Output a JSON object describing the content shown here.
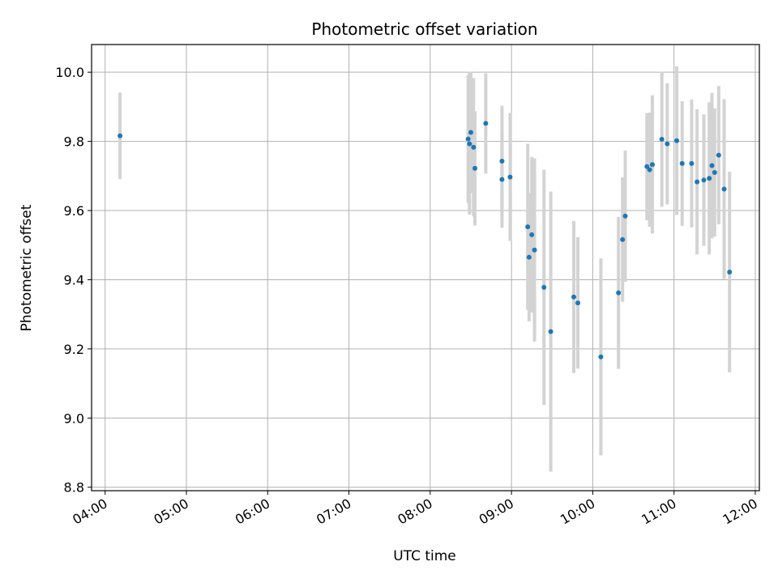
{
  "chart_data": {
    "type": "scatter",
    "title": "Photometric offset variation",
    "xlabel": "UTC time",
    "ylabel": "Photometric offset",
    "xlim": [
      "03:50",
      "12:03"
    ],
    "ylim": [
      8.79,
      10.08
    ],
    "xticks": [
      "04:00",
      "05:00",
      "06:00",
      "07:00",
      "08:00",
      "09:00",
      "10:00",
      "11:00",
      "12:00"
    ],
    "yticks": [
      8.8,
      9.0,
      9.2,
      9.4,
      9.6,
      9.8,
      10.0
    ],
    "ytick_labels": [
      "8.8",
      "9.0",
      "9.2",
      "9.4",
      "9.6",
      "9.8",
      "10.0"
    ],
    "grid": true,
    "marker_color": "#1f77b4",
    "errorbar_color": "#d3d3d3",
    "points": [
      {
        "x": "04:11",
        "y": 9.816,
        "yerr": 0.125
      },
      {
        "x": "08:28",
        "y": 9.807,
        "yerr": 0.185
      },
      {
        "x": "08:29",
        "y": 9.793,
        "yerr": 0.205
      },
      {
        "x": "08:30",
        "y": 9.826,
        "yerr": 0.175
      },
      {
        "x": "08:32",
        "y": 9.783,
        "yerr": 0.2
      },
      {
        "x": "08:33",
        "y": 9.722,
        "yerr": 0.165
      },
      {
        "x": "08:41",
        "y": 9.852,
        "yerr": 0.145
      },
      {
        "x": "08:53",
        "y": 9.743,
        "yerr": 0.16
      },
      {
        "x": "08:53",
        "y": 9.69,
        "yerr": 0.14
      },
      {
        "x": "08:59",
        "y": 9.697,
        "yerr": 0.185
      },
      {
        "x": "09:12",
        "y": 9.553,
        "yerr": 0.24
      },
      {
        "x": "09:13",
        "y": 9.465,
        "yerr": 0.185
      },
      {
        "x": "09:15",
        "y": 9.53,
        "yerr": 0.225
      },
      {
        "x": "09:17",
        "y": 9.486,
        "yerr": 0.265
      },
      {
        "x": "09:24",
        "y": 9.378,
        "yerr": 0.34
      },
      {
        "x": "09:29",
        "y": 9.25,
        "yerr": 0.405
      },
      {
        "x": "09:46",
        "y": 9.35,
        "yerr": 0.22
      },
      {
        "x": "09:49",
        "y": 9.333,
        "yerr": 0.19
      },
      {
        "x": "10:06",
        "y": 9.177,
        "yerr": 0.285
      },
      {
        "x": "10:19",
        "y": 9.362,
        "yerr": 0.22
      },
      {
        "x": "10:22",
        "y": 9.516,
        "yerr": 0.18
      },
      {
        "x": "10:24",
        "y": 9.584,
        "yerr": 0.19
      },
      {
        "x": "10:40",
        "y": 9.727,
        "yerr": 0.155
      },
      {
        "x": "10:42",
        "y": 9.718,
        "yerr": 0.165
      },
      {
        "x": "10:44",
        "y": 9.733,
        "yerr": 0.2
      },
      {
        "x": "10:51",
        "y": 9.806,
        "yerr": 0.195
      },
      {
        "x": "10:55",
        "y": 9.793,
        "yerr": 0.175
      },
      {
        "x": "11:02",
        "y": 9.802,
        "yerr": 0.215
      },
      {
        "x": "11:06",
        "y": 9.736,
        "yerr": 0.18
      },
      {
        "x": "11:13",
        "y": 9.736,
        "yerr": 0.185
      },
      {
        "x": "11:17",
        "y": 9.683,
        "yerr": 0.21
      },
      {
        "x": "11:22",
        "y": 9.688,
        "yerr": 0.19
      },
      {
        "x": "11:26",
        "y": 9.693,
        "yerr": 0.22
      },
      {
        "x": "11:28",
        "y": 9.73,
        "yerr": 0.21
      },
      {
        "x": "11:30",
        "y": 9.71,
        "yerr": 0.185
      },
      {
        "x": "11:33",
        "y": 9.76,
        "yerr": 0.2
      },
      {
        "x": "11:37",
        "y": 9.662,
        "yerr": 0.26
      },
      {
        "x": "11:41",
        "y": 9.422,
        "yerr": 0.29
      }
    ]
  }
}
